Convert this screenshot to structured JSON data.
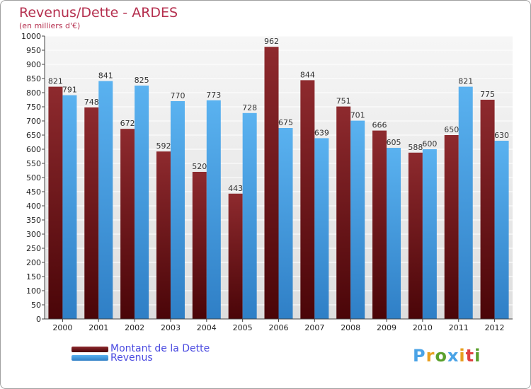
{
  "title": "Revenus/Dette - ARDES",
  "subtitle": "(en milliers d'€)",
  "colors": {
    "dette": "#6b0f14",
    "revenus": "#4aa3e6",
    "title": "#b5304f",
    "legend_text": "#4a4ae0"
  },
  "logo": {
    "letters": [
      "P",
      "r",
      "o",
      "x",
      "i",
      "t",
      "i"
    ],
    "colors": [
      "#4aa3e6",
      "#e8a020",
      "#5aa02c",
      "#4aa3e6",
      "#e8a020",
      "#e04040",
      "#5aa02c"
    ]
  },
  "chart_data": {
    "type": "bar",
    "title": "Revenus/Dette - ARDES",
    "subtitle": "(en milliers d'€)",
    "categories": [
      "2000",
      "2001",
      "2002",
      "2003",
      "2004",
      "2005",
      "2006",
      "2007",
      "2008",
      "2009",
      "2010",
      "2011",
      "2012"
    ],
    "series": [
      {
        "name": "Montant de la Dette",
        "values": [
          821,
          748,
          672,
          592,
          520,
          443,
          962,
          844,
          751,
          666,
          588,
          650,
          775
        ]
      },
      {
        "name": "Revenus",
        "values": [
          791,
          841,
          825,
          770,
          773,
          728,
          675,
          639,
          701,
          605,
          600,
          821,
          630
        ]
      }
    ],
    "ylim": [
      0,
      1000
    ],
    "ytick_step": 50,
    "grid": true,
    "legend_position": "bottom-left"
  }
}
